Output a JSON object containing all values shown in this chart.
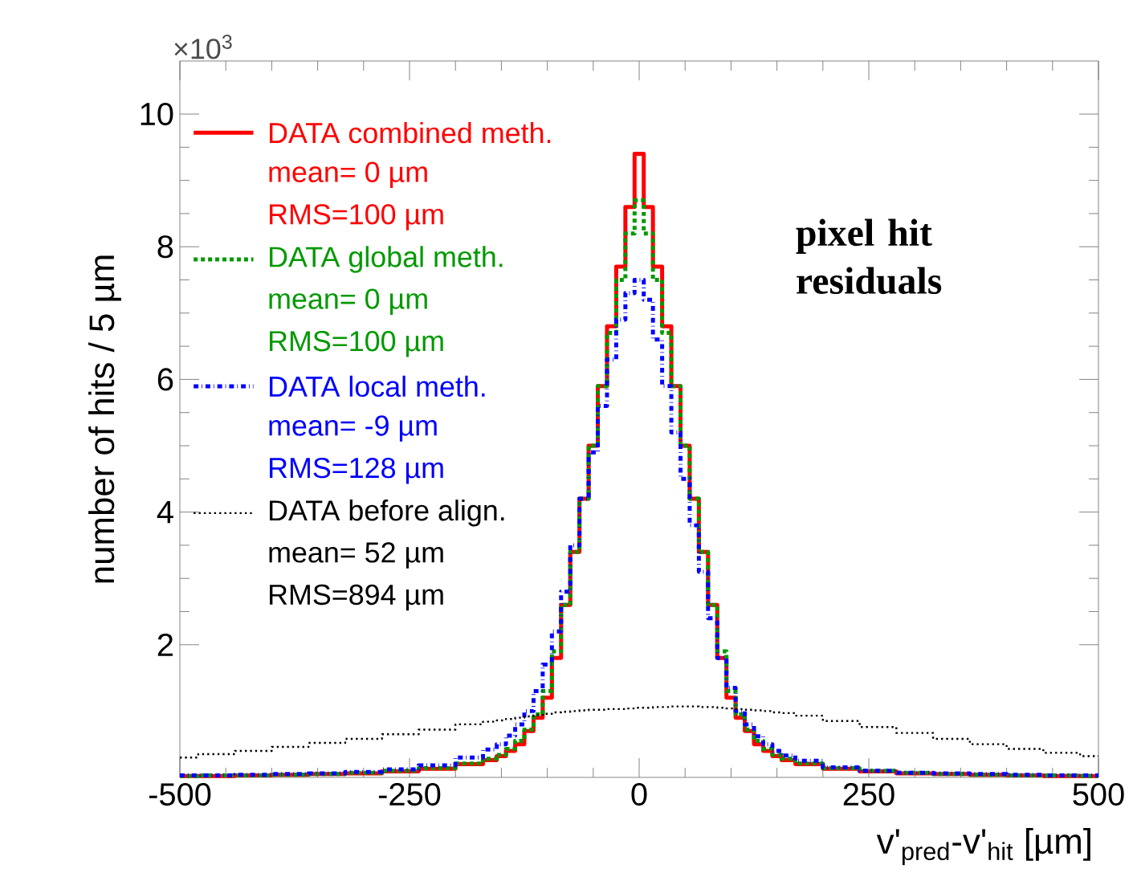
{
  "chart_data": {
    "type": "step",
    "xlabel": "v'$_{pred}$-v'$_{hit}$ [µm]",
    "ylabel": "number of hits / 5 µm",
    "x": [
      -500,
      -460,
      -420,
      -380,
      -340,
      -300,
      -260,
      -220,
      -180,
      -160,
      -150,
      -140,
      -130,
      -120,
      -110,
      -100,
      -90,
      -80,
      -70,
      -60,
      -50,
      -40,
      -30,
      -20,
      -10,
      0,
      10,
      20,
      30,
      40,
      50,
      60,
      70,
      80,
      90,
      100,
      110,
      120,
      130,
      140,
      150,
      160,
      180,
      220,
      260,
      300,
      340,
      380,
      420,
      460,
      500
    ],
    "series": [
      {
        "name": "DATA combined meth.",
        "color": "#ff0000",
        "line_style": "solid",
        "values": [
          0.02,
          0.02,
          0.03,
          0.04,
          0.05,
          0.06,
          0.09,
          0.13,
          0.2,
          0.26,
          0.32,
          0.4,
          0.5,
          0.7,
          0.9,
          1.2,
          1.8,
          2.6,
          3.4,
          4.2,
          5.0,
          5.9,
          6.8,
          7.7,
          8.6,
          9.4,
          8.6,
          7.7,
          6.8,
          5.9,
          5.0,
          4.2,
          3.4,
          2.6,
          1.8,
          1.2,
          0.9,
          0.7,
          0.5,
          0.4,
          0.32,
          0.26,
          0.2,
          0.13,
          0.09,
          0.06,
          0.05,
          0.04,
          0.03,
          0.02,
          0.02
        ]
      },
      {
        "name": "DATA global meth.",
        "color": "#009900",
        "line_style": "dotted",
        "values": [
          0.02,
          0.03,
          0.03,
          0.04,
          0.05,
          0.07,
          0.1,
          0.14,
          0.21,
          0.28,
          0.34,
          0.43,
          0.55,
          0.72,
          0.95,
          1.3,
          1.9,
          2.6,
          3.4,
          4.2,
          5.0,
          5.9,
          6.7,
          7.5,
          8.2,
          8.7,
          8.2,
          7.5,
          6.7,
          5.9,
          5.0,
          4.2,
          3.4,
          2.6,
          1.9,
          1.3,
          0.95,
          0.72,
          0.55,
          0.43,
          0.34,
          0.28,
          0.21,
          0.14,
          0.1,
          0.07,
          0.05,
          0.04,
          0.03,
          0.03,
          0.02
        ]
      },
      {
        "name": "DATA local meth.",
        "color": "#0000ff",
        "line_style": "dashed",
        "values": [
          0.03,
          0.03,
          0.04,
          0.05,
          0.06,
          0.08,
          0.12,
          0.18,
          0.3,
          0.42,
          0.5,
          0.63,
          0.8,
          1.0,
          1.3,
          1.7,
          2.2,
          2.8,
          3.5,
          4.2,
          4.9,
          5.6,
          6.3,
          6.9,
          7.3,
          7.5,
          7.2,
          6.6,
          5.9,
          5.2,
          4.5,
          3.8,
          3.1,
          2.4,
          1.8,
          1.35,
          1.0,
          0.8,
          0.62,
          0.5,
          0.4,
          0.33,
          0.25,
          0.15,
          0.1,
          0.07,
          0.06,
          0.05,
          0.04,
          0.03,
          0.03
        ]
      },
      {
        "name": "DATA before align.",
        "color": "#000000",
        "line_style": "dotted",
        "values": [
          0.3,
          0.35,
          0.4,
          0.46,
          0.52,
          0.58,
          0.65,
          0.72,
          0.8,
          0.84,
          0.86,
          0.88,
          0.9,
          0.92,
          0.94,
          0.96,
          0.98,
          0.99,
          1.0,
          1.01,
          1.02,
          1.02,
          1.03,
          1.03,
          1.04,
          1.05,
          1.05,
          1.06,
          1.06,
          1.07,
          1.07,
          1.07,
          1.06,
          1.06,
          1.05,
          1.04,
          1.03,
          1.02,
          1.01,
          1.0,
          0.98,
          0.97,
          0.93,
          0.85,
          0.76,
          0.67,
          0.58,
          0.5,
          0.43,
          0.37,
          0.32
        ]
      }
    ],
    "annotations": [
      "mean= 0 µm",
      "RMS=100 µm",
      "mean= 0 µm",
      "RMS=100 µm",
      "mean= -9 µm",
      "RMS=128 µm",
      "mean= 52 µm",
      "RMS=894 µm",
      "pixel hit residuals",
      "×10$^{3}$"
    ],
    "xlim": [
      -500,
      500
    ],
    "xticks": [
      -500,
      -250,
      0,
      250,
      500
    ],
    "ylim": [
      0,
      10.8
    ],
    "yticks": [
      2,
      4,
      6,
      8,
      10
    ],
    "legend": "top left"
  }
}
